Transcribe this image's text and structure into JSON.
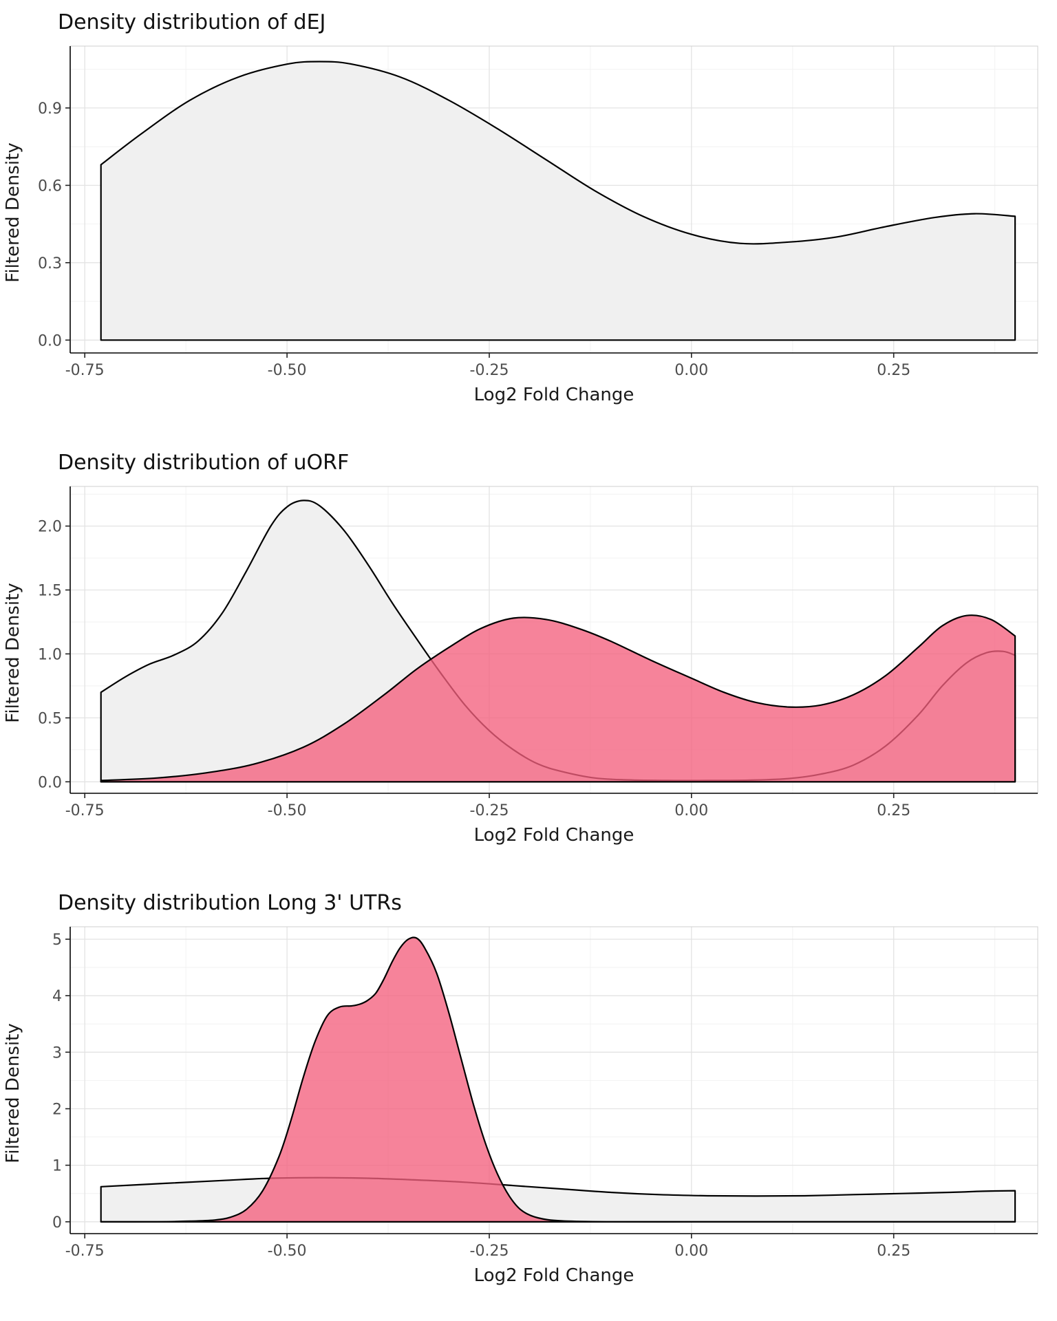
{
  "colors": {
    "grey_fill": "#F0F0F0",
    "pink_fill": "#F4607D",
    "curve_stroke": "#000000",
    "grid_major": "#E3E3E3",
    "grid_minor": "#F2F2F2",
    "panel_border": "#CFCFCF",
    "axis_line": "#000000",
    "tick_label": "#4D4D4D"
  },
  "chart_data": [
    {
      "type": "area",
      "title": "Density distribution of dEJ",
      "xlabel": "Log2 Fold Change",
      "ylabel": "Filtered Density",
      "xlim": [
        -0.768,
        0.428
      ],
      "ylim": [
        -0.05,
        1.14
      ],
      "x_ticks": [
        -0.75,
        -0.5,
        -0.25,
        0,
        0.25
      ],
      "x_tick_labels": [
        "-0.75",
        "-0.50",
        "-0.25",
        "0.00",
        "0.25"
      ],
      "y_ticks": [
        0,
        0.3,
        0.6,
        0.9
      ],
      "y_tick_labels": [
        "0.0",
        "0.3",
        "0.6",
        "0.9"
      ],
      "grid": true,
      "legend": "none",
      "series": [
        {
          "name": "dEJ-density",
          "fill": "#F0F0F0",
          "fill_opacity": 1,
          "stroke": "#000000",
          "x": [
            -0.73,
            -0.68,
            -0.62,
            -0.56,
            -0.5,
            -0.46,
            -0.42,
            -0.36,
            -0.3,
            -0.24,
            -0.18,
            -0.12,
            -0.06,
            0.0,
            0.06,
            0.12,
            0.18,
            0.24,
            0.3,
            0.35,
            0.4
          ],
          "y": [
            0.68,
            0.8,
            0.93,
            1.02,
            1.07,
            1.08,
            1.07,
            1.02,
            0.93,
            0.82,
            0.7,
            0.58,
            0.48,
            0.41,
            0.375,
            0.38,
            0.4,
            0.44,
            0.475,
            0.49,
            0.48
          ]
        }
      ]
    },
    {
      "type": "area",
      "title": "Density distribution of uORF",
      "xlabel": "Log2 Fold Change",
      "ylabel": "Filtered Density",
      "xlim": [
        -0.768,
        0.428
      ],
      "ylim": [
        -0.09,
        2.31
      ],
      "x_ticks": [
        -0.75,
        -0.5,
        -0.25,
        0,
        0.25
      ],
      "x_tick_labels": [
        "-0.75",
        "-0.50",
        "-0.25",
        "0.00",
        "0.25"
      ],
      "y_ticks": [
        0,
        0.5,
        1,
        1.5,
        2
      ],
      "y_tick_labels": [
        "0.0",
        "0.5",
        "1.0",
        "1.5",
        "2.0"
      ],
      "grid": true,
      "legend": "none",
      "series": [
        {
          "name": "grey-density",
          "fill": "#F0F0F0",
          "fill_opacity": 1,
          "stroke": "#000000",
          "x": [
            -0.73,
            -0.7,
            -0.67,
            -0.64,
            -0.61,
            -0.58,
            -0.55,
            -0.52,
            -0.5,
            -0.48,
            -0.46,
            -0.43,
            -0.4,
            -0.37,
            -0.34,
            -0.31,
            -0.28,
            -0.25,
            -0.22,
            -0.19,
            -0.16,
            -0.12,
            -0.08,
            -0.03,
            0.02,
            0.07,
            0.12,
            0.16,
            0.2,
            0.24,
            0.28,
            0.31,
            0.34,
            0.365,
            0.385,
            0.4
          ],
          "y": [
            0.7,
            0.82,
            0.92,
            0.99,
            1.1,
            1.32,
            1.65,
            2.0,
            2.15,
            2.2,
            2.16,
            1.97,
            1.7,
            1.4,
            1.12,
            0.85,
            0.6,
            0.4,
            0.25,
            0.14,
            0.08,
            0.03,
            0.015,
            0.01,
            0.01,
            0.012,
            0.025,
            0.06,
            0.13,
            0.28,
            0.52,
            0.75,
            0.93,
            1.01,
            1.02,
            0.99
          ]
        },
        {
          "name": "pink-density",
          "fill": "#F4607D",
          "fill_opacity": 0.78,
          "stroke": "#000000",
          "x": [
            -0.73,
            -0.66,
            -0.6,
            -0.54,
            -0.48,
            -0.43,
            -0.38,
            -0.34,
            -0.3,
            -0.26,
            -0.22,
            -0.18,
            -0.14,
            -0.1,
            -0.05,
            0.0,
            0.04,
            0.08,
            0.12,
            0.16,
            0.2,
            0.24,
            0.28,
            0.31,
            0.34,
            0.37,
            0.4
          ],
          "y": [
            0.01,
            0.03,
            0.07,
            0.14,
            0.27,
            0.45,
            0.68,
            0.88,
            1.05,
            1.2,
            1.28,
            1.27,
            1.2,
            1.1,
            0.95,
            0.81,
            0.7,
            0.62,
            0.585,
            0.6,
            0.68,
            0.83,
            1.05,
            1.22,
            1.3,
            1.27,
            1.14
          ]
        }
      ]
    },
    {
      "type": "area",
      "title": "Density distribution Long 3' UTRs",
      "xlabel": "Log2 Fold Change",
      "ylabel": "Filtered Density",
      "xlim": [
        -0.768,
        0.428
      ],
      "ylim": [
        -0.21,
        5.22
      ],
      "x_ticks": [
        -0.75,
        -0.5,
        -0.25,
        0,
        0.25
      ],
      "x_tick_labels": [
        "-0.75",
        "-0.50",
        "-0.25",
        "0.00",
        "0.25"
      ],
      "y_ticks": [
        0,
        1,
        2,
        3,
        4,
        5
      ],
      "y_tick_labels": [
        "0",
        "1",
        "2",
        "3",
        "4",
        "5"
      ],
      "grid": true,
      "legend": "none",
      "series": [
        {
          "name": "grey-density",
          "fill": "#F0F0F0",
          "fill_opacity": 1,
          "stroke": "#000000",
          "x": [
            -0.73,
            -0.65,
            -0.58,
            -0.52,
            -0.46,
            -0.4,
            -0.34,
            -0.28,
            -0.22,
            -0.16,
            -0.1,
            -0.04,
            0.02,
            0.08,
            0.14,
            0.2,
            0.26,
            0.32,
            0.36,
            0.4
          ],
          "y": [
            0.62,
            0.68,
            0.73,
            0.77,
            0.78,
            0.77,
            0.74,
            0.7,
            0.64,
            0.58,
            0.52,
            0.48,
            0.46,
            0.455,
            0.46,
            0.48,
            0.5,
            0.52,
            0.54,
            0.55
          ]
        },
        {
          "name": "pink-density",
          "fill": "#F4607D",
          "fill_opacity": 0.78,
          "stroke": "#000000",
          "x": [
            -0.73,
            -0.66,
            -0.62,
            -0.59,
            -0.57,
            -0.55,
            -0.53,
            -0.51,
            -0.495,
            -0.48,
            -0.465,
            -0.45,
            -0.435,
            -0.42,
            -0.41,
            -0.4,
            -0.39,
            -0.38,
            -0.37,
            -0.36,
            -0.35,
            -0.34,
            -0.33,
            -0.315,
            -0.3,
            -0.285,
            -0.27,
            -0.255,
            -0.24,
            -0.225,
            -0.21,
            -0.19,
            -0.16,
            -0.1,
            0.0,
            0.1,
            0.2,
            0.3,
            0.4
          ],
          "y": [
            0.0,
            0.0,
            0.01,
            0.03,
            0.08,
            0.22,
            0.55,
            1.15,
            1.8,
            2.55,
            3.2,
            3.65,
            3.8,
            3.82,
            3.85,
            3.92,
            4.05,
            4.3,
            4.6,
            4.85,
            5.0,
            5.02,
            4.85,
            4.4,
            3.7,
            2.9,
            2.1,
            1.4,
            0.85,
            0.45,
            0.2,
            0.07,
            0.015,
            0.0,
            0.0,
            0.0,
            0.0,
            0.0,
            0.0
          ]
        }
      ]
    }
  ]
}
